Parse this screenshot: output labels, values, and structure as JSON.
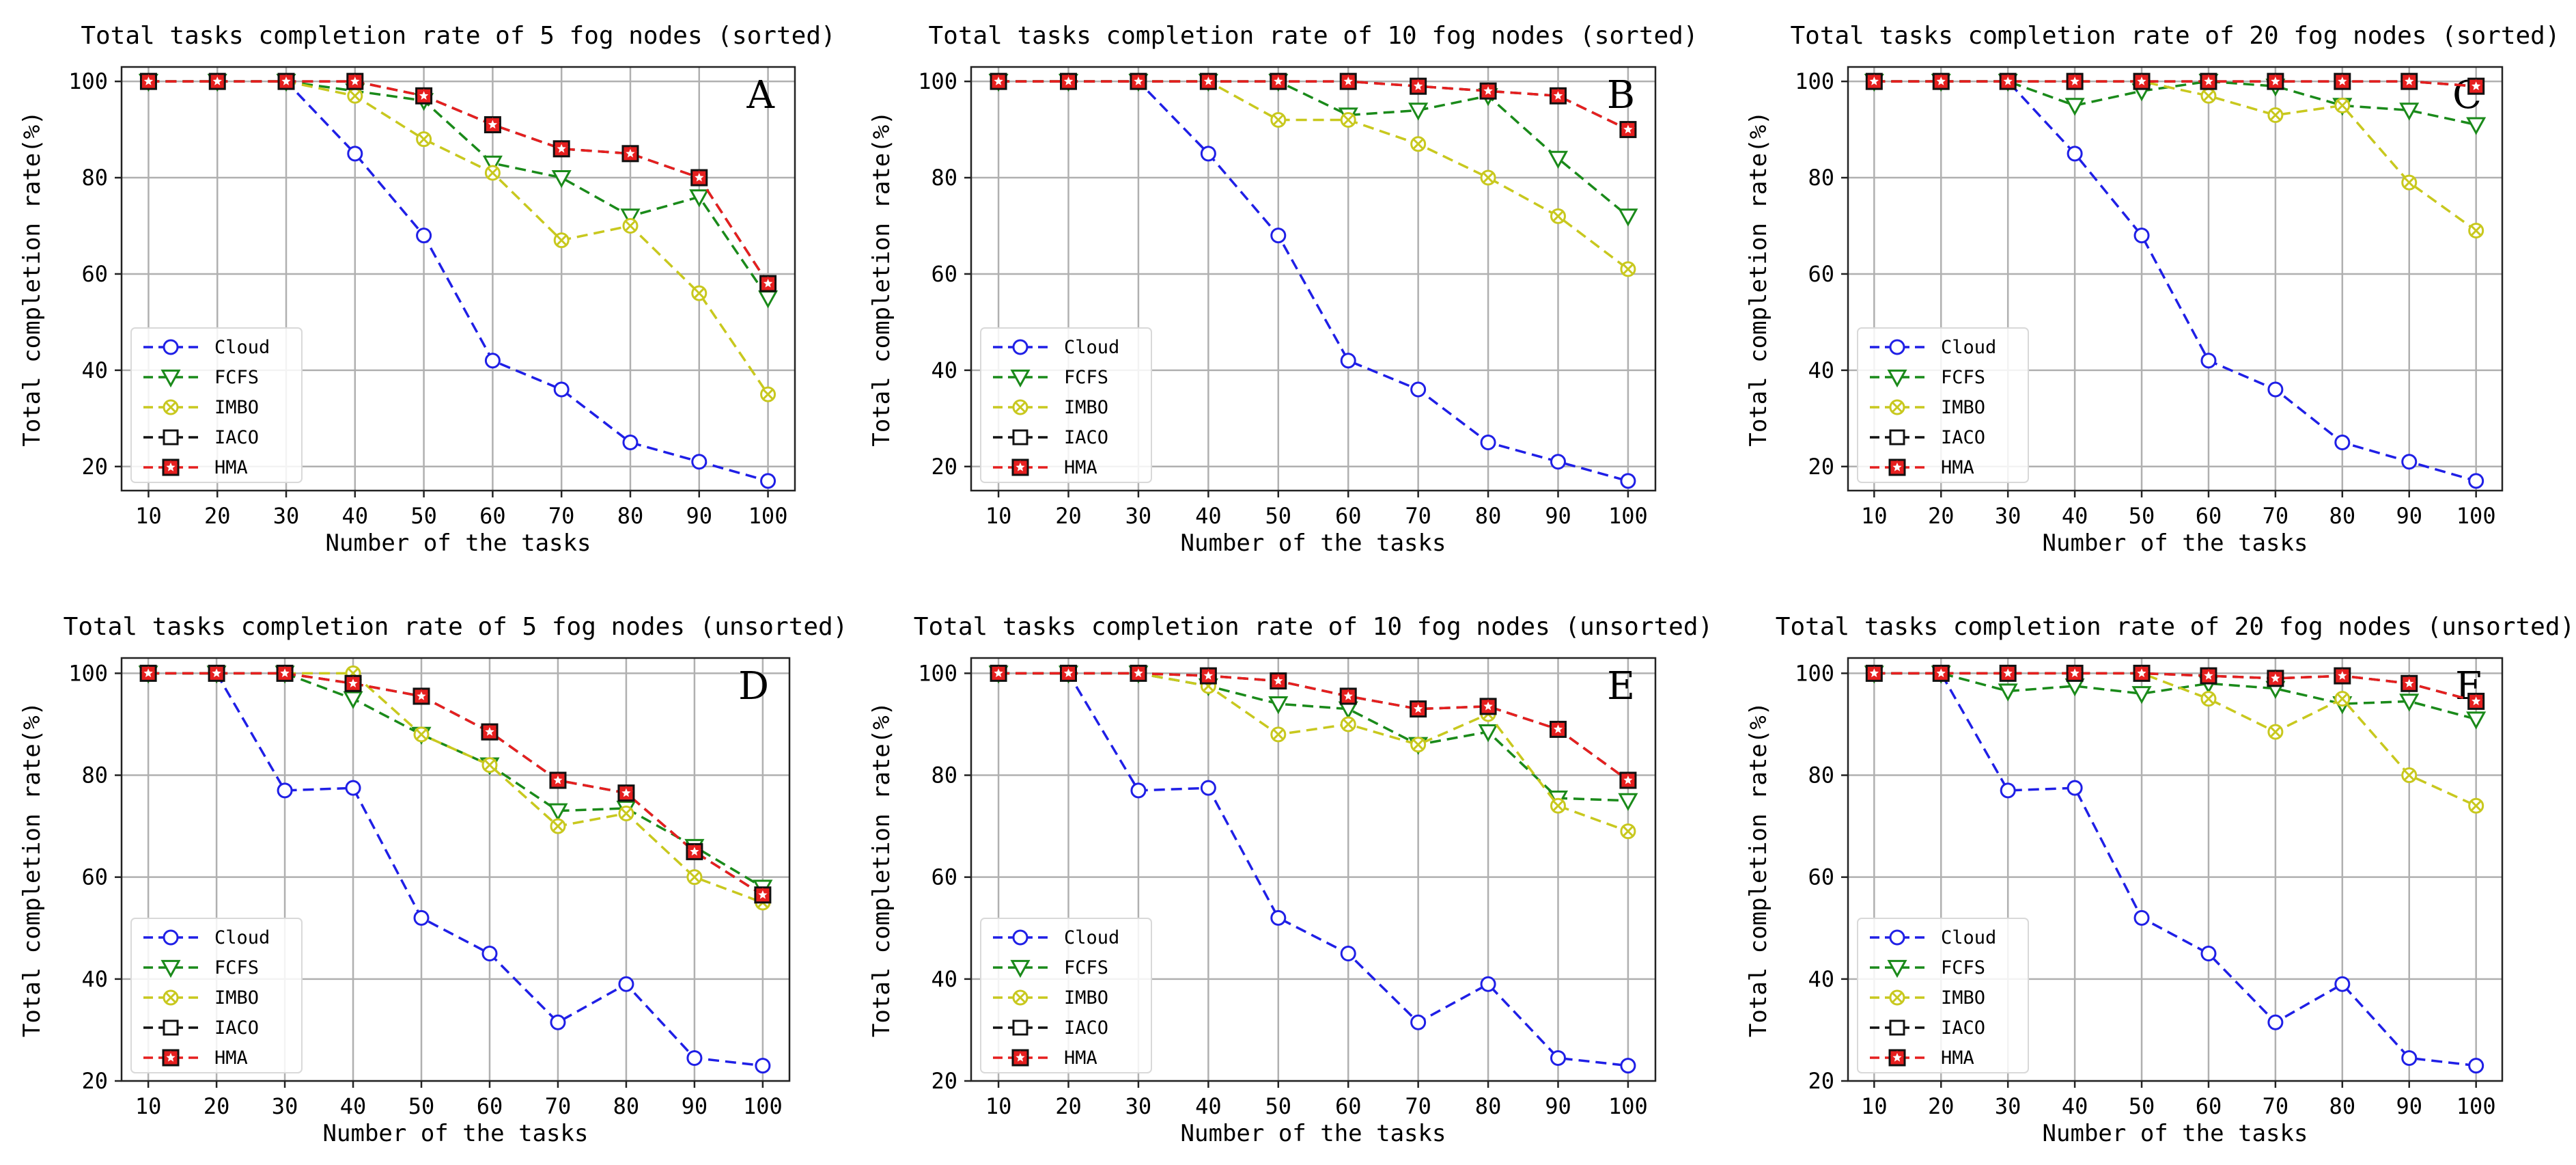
{
  "chart_data": [
    {
      "type": "line",
      "title": "Total tasks completion rate of 5 fog nodes (sorted)",
      "panel_label": "A",
      "xlabel": "Number of the tasks",
      "ylabel": "Total completion rate(%)",
      "ylim": [
        15,
        103
      ],
      "yticks": [
        20,
        40,
        60,
        80,
        100
      ],
      "x": [
        10,
        20,
        30,
        40,
        50,
        60,
        70,
        80,
        90,
        100
      ],
      "grid": true,
      "legend": "lower-left",
      "series": [
        {
          "name": "Cloud",
          "color": "#1f1fe6",
          "marker": "circle",
          "values": [
            100,
            100,
            100,
            85,
            68,
            42,
            36,
            25,
            21,
            17
          ]
        },
        {
          "name": "FCFS",
          "color": "#1a8a1a",
          "marker": "triangle-down",
          "values": [
            100,
            100,
            100,
            98,
            96,
            83,
            80,
            72,
            76,
            55
          ]
        },
        {
          "name": "IMBO",
          "color": "#c8c81e",
          "marker": "x-circle",
          "values": [
            100,
            100,
            100,
            97,
            88,
            81,
            67,
            70,
            56,
            35
          ]
        },
        {
          "name": "IACO",
          "color": "#111111",
          "marker": "square",
          "values": [
            100,
            100,
            100,
            100,
            97,
            91,
            86,
            85,
            80,
            58
          ]
        },
        {
          "name": "HMA",
          "color": "#e61f1f",
          "marker": "star",
          "values": [
            100,
            100,
            100,
            100,
            97,
            91,
            86,
            85,
            80,
            58
          ]
        }
      ]
    },
    {
      "type": "line",
      "title": "Total tasks completion rate of 10 fog nodes (sorted)",
      "panel_label": "B",
      "xlabel": "Number of the tasks",
      "ylabel": "Total completion rate(%)",
      "ylim": [
        15,
        103
      ],
      "yticks": [
        20,
        40,
        60,
        80,
        100
      ],
      "x": [
        10,
        20,
        30,
        40,
        50,
        60,
        70,
        80,
        90,
        100
      ],
      "grid": true,
      "legend": "lower-left",
      "series": [
        {
          "name": "Cloud",
          "color": "#1f1fe6",
          "marker": "circle",
          "values": [
            100,
            100,
            100,
            85,
            68,
            42,
            36,
            25,
            21,
            17
          ]
        },
        {
          "name": "FCFS",
          "color": "#1a8a1a",
          "marker": "triangle-down",
          "values": [
            100,
            100,
            100,
            100,
            100,
            93,
            94,
            97,
            84,
            72
          ]
        },
        {
          "name": "IMBO",
          "color": "#c8c81e",
          "marker": "x-circle",
          "values": [
            100,
            100,
            100,
            100,
            92,
            92,
            87,
            80,
            72,
            61
          ]
        },
        {
          "name": "IACO",
          "color": "#111111",
          "marker": "square",
          "values": [
            100,
            100,
            100,
            100,
            100,
            100,
            99,
            98,
            97,
            90
          ]
        },
        {
          "name": "HMA",
          "color": "#e61f1f",
          "marker": "star",
          "values": [
            100,
            100,
            100,
            100,
            100,
            100,
            99,
            98,
            97,
            90
          ]
        }
      ]
    },
    {
      "type": "line",
      "title": "Total tasks completion rate of 20 fog nodes (sorted)",
      "panel_label": "C",
      "xlabel": "Number of the tasks",
      "ylabel": "Total completion rate(%)",
      "ylim": [
        15,
        103
      ],
      "yticks": [
        20,
        40,
        60,
        80,
        100
      ],
      "x": [
        10,
        20,
        30,
        40,
        50,
        60,
        70,
        80,
        90,
        100
      ],
      "grid": true,
      "legend": "lower-left",
      "series": [
        {
          "name": "Cloud",
          "color": "#1f1fe6",
          "marker": "circle",
          "values": [
            100,
            100,
            100,
            85,
            68,
            42,
            36,
            25,
            21,
            17
          ]
        },
        {
          "name": "FCFS",
          "color": "#1a8a1a",
          "marker": "triangle-down",
          "values": [
            100,
            100,
            100,
            95,
            98,
            100,
            99,
            95,
            94,
            91
          ]
        },
        {
          "name": "IMBO",
          "color": "#c8c81e",
          "marker": "x-circle",
          "values": [
            100,
            100,
            100,
            100,
            100,
            97,
            93,
            95,
            79,
            69
          ]
        },
        {
          "name": "IACO",
          "color": "#111111",
          "marker": "square",
          "values": [
            100,
            100,
            100,
            100,
            100,
            100,
            100,
            100,
            100,
            99
          ]
        },
        {
          "name": "HMA",
          "color": "#e61f1f",
          "marker": "star",
          "values": [
            100,
            100,
            100,
            100,
            100,
            100,
            100,
            100,
            100,
            99
          ]
        }
      ]
    },
    {
      "type": "line",
      "title": "Total tasks completion rate of 5 fog nodes (unsorted)",
      "panel_label": "D",
      "xlabel": "Number of the tasks",
      "ylabel": "Total completion rate(%)",
      "ylim": [
        20,
        103
      ],
      "yticks": [
        20,
        40,
        60,
        80,
        100
      ],
      "x": [
        10,
        20,
        30,
        40,
        50,
        60,
        70,
        80,
        90,
        100
      ],
      "grid": true,
      "legend": "lower-left",
      "series": [
        {
          "name": "Cloud",
          "color": "#1f1fe6",
          "marker": "circle",
          "values": [
            100,
            100,
            77,
            77.5,
            52,
            45,
            31.5,
            39,
            24.5,
            23
          ]
        },
        {
          "name": "FCFS",
          "color": "#1a8a1a",
          "marker": "triangle-down",
          "values": [
            100,
            100,
            100,
            95,
            88,
            82,
            73,
            73.5,
            66,
            58
          ]
        },
        {
          "name": "IMBO",
          "color": "#c8c81e",
          "marker": "x-circle",
          "values": [
            100,
            100,
            100,
            100,
            88,
            82,
            70,
            72.5,
            60,
            55
          ]
        },
        {
          "name": "IACO",
          "color": "#111111",
          "marker": "square",
          "values": [
            100,
            100,
            100,
            98,
            95.5,
            88.5,
            79,
            76.5,
            65,
            56.5
          ]
        },
        {
          "name": "HMA",
          "color": "#e61f1f",
          "marker": "star",
          "values": [
            100,
            100,
            100,
            98,
            95.5,
            88.5,
            79,
            76.5,
            65,
            56.5
          ]
        }
      ]
    },
    {
      "type": "line",
      "title": "Total tasks completion rate of 10 fog nodes (unsorted)",
      "panel_label": "E",
      "xlabel": "Number of the tasks",
      "ylabel": "Total completion rate(%)",
      "ylim": [
        20,
        103
      ],
      "yticks": [
        20,
        40,
        60,
        80,
        100
      ],
      "x": [
        10,
        20,
        30,
        40,
        50,
        60,
        70,
        80,
        90,
        100
      ],
      "grid": true,
      "legend": "lower-left",
      "series": [
        {
          "name": "Cloud",
          "color": "#1f1fe6",
          "marker": "circle",
          "values": [
            100,
            100,
            77,
            77.5,
            52,
            45,
            31.5,
            39,
            24.5,
            23
          ]
        },
        {
          "name": "FCFS",
          "color": "#1a8a1a",
          "marker": "triangle-down",
          "values": [
            100,
            100,
            100,
            97.5,
            94,
            93,
            86,
            88.5,
            75.5,
            75
          ]
        },
        {
          "name": "IMBO",
          "color": "#c8c81e",
          "marker": "x-circle",
          "values": [
            100,
            100,
            100,
            97.5,
            88,
            90,
            86,
            92,
            74,
            69
          ]
        },
        {
          "name": "IACO",
          "color": "#111111",
          "marker": "square",
          "values": [
            100,
            100,
            100,
            99.5,
            98.5,
            95.5,
            93,
            93.5,
            89,
            79
          ]
        },
        {
          "name": "HMA",
          "color": "#e61f1f",
          "marker": "star",
          "values": [
            100,
            100,
            100,
            99.5,
            98.5,
            95.5,
            93,
            93.5,
            89,
            79
          ]
        }
      ]
    },
    {
      "type": "line",
      "title": "Total tasks completion rate of 20 fog nodes (unsorted)",
      "panel_label": "F",
      "xlabel": "Number of the tasks",
      "ylabel": "Total completion rate(%)",
      "ylim": [
        20,
        103
      ],
      "yticks": [
        20,
        40,
        60,
        80,
        100
      ],
      "x": [
        10,
        20,
        30,
        40,
        50,
        60,
        70,
        80,
        90,
        100
      ],
      "grid": true,
      "legend": "lower-left",
      "series": [
        {
          "name": "Cloud",
          "color": "#1f1fe6",
          "marker": "circle",
          "values": [
            100,
            100,
            77,
            77.5,
            52,
            45,
            31.5,
            39,
            24.5,
            23
          ]
        },
        {
          "name": "FCFS",
          "color": "#1a8a1a",
          "marker": "triangle-down",
          "values": [
            100,
            100,
            96.5,
            97.5,
            96,
            98,
            97,
            94,
            94.5,
            91
          ]
        },
        {
          "name": "IMBO",
          "color": "#c8c81e",
          "marker": "x-circle",
          "values": [
            100,
            100,
            100,
            100,
            100,
            95,
            88.5,
            95,
            80,
            74
          ]
        },
        {
          "name": "IACO",
          "color": "#111111",
          "marker": "square",
          "values": [
            100,
            100,
            100,
            100,
            100,
            99.5,
            99,
            99.5,
            98,
            94.5
          ]
        },
        {
          "name": "HMA",
          "color": "#e61f1f",
          "marker": "star",
          "values": [
            100,
            100,
            100,
            100,
            100,
            99.5,
            99,
            99.5,
            98,
            94.5
          ]
        }
      ]
    }
  ]
}
